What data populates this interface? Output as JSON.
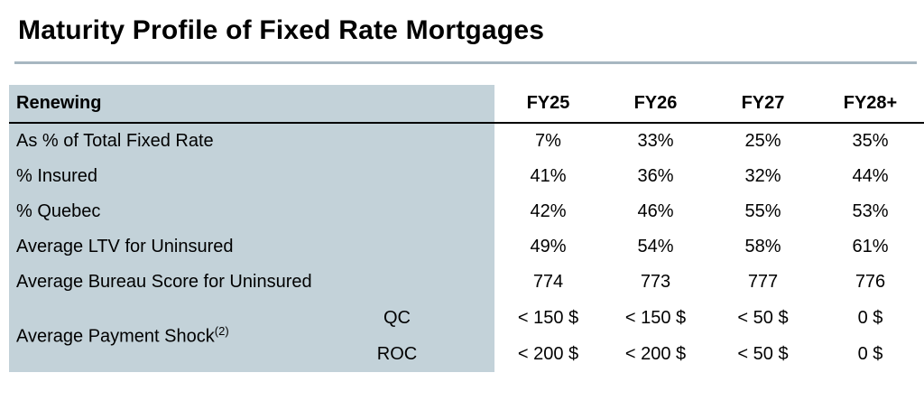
{
  "page": {
    "title": "Maturity Profile of Fixed Rate Mortgages"
  },
  "table": {
    "corner_label": "Renewing",
    "columns": [
      "FY25",
      "FY26",
      "FY27",
      "FY28+"
    ],
    "rows": [
      {
        "label": "As % of Total Fixed Rate",
        "values": [
          "7%",
          "33%",
          "25%",
          "35%"
        ]
      },
      {
        "label": "% Insured",
        "values": [
          "41%",
          "36%",
          "32%",
          "44%"
        ]
      },
      {
        "label": "% Quebec",
        "values": [
          "42%",
          "46%",
          "55%",
          "53%"
        ]
      },
      {
        "label": "Average LTV for Uninsured",
        "values": [
          "49%",
          "54%",
          "58%",
          "61%"
        ]
      },
      {
        "label": "Average Bureau Score for Uninsured",
        "values": [
          "774",
          "773",
          "777",
          "776"
        ]
      }
    ],
    "payment_shock": {
      "label": "Average Payment Shock",
      "footnote_marker": "(2)",
      "sub_rows": [
        {
          "label": "QC",
          "values": [
            "< 150 $",
            "< 150 $",
            "< 50 $",
            "0 $"
          ]
        },
        {
          "label": "ROC",
          "values": [
            "< 200 $",
            "< 200 $",
            "< 50 $",
            "0 $"
          ]
        }
      ]
    }
  },
  "colors": {
    "panel": "#c3d2d9",
    "title_rule": "#a7b7c1",
    "header_rule": "#000000",
    "text": "#000000"
  },
  "chart_data": {
    "type": "table",
    "title": "Maturity Profile of Fixed Rate Mortgages",
    "columns": [
      "Renewing",
      "FY25",
      "FY26",
      "FY27",
      "FY28+"
    ],
    "rows": [
      [
        "As % of Total Fixed Rate",
        "7%",
        "33%",
        "25%",
        "35%"
      ],
      [
        "% Insured",
        "41%",
        "36%",
        "32%",
        "44%"
      ],
      [
        "% Quebec",
        "42%",
        "46%",
        "55%",
        "53%"
      ],
      [
        "Average LTV for Uninsured",
        "49%",
        "54%",
        "58%",
        "61%"
      ],
      [
        "Average Bureau Score for Uninsured",
        "774",
        "773",
        "777",
        "776"
      ],
      [
        "Average Payment Shock (2) - QC",
        "< 150 $",
        "< 150 $",
        "< 50 $",
        "0 $"
      ],
      [
        "Average Payment Shock (2) - ROC",
        "< 200 $",
        "< 200 $",
        "< 50 $",
        "0 $"
      ]
    ]
  }
}
